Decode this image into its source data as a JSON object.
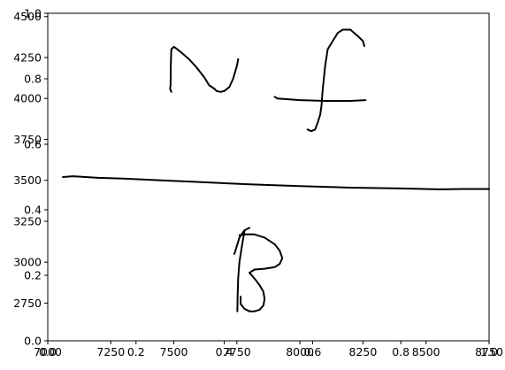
{
  "chart_data": {
    "type": "line",
    "title": "",
    "xlabel": "",
    "ylabel": "",
    "grid": false,
    "xlim": [
      7000,
      8750
    ],
    "ylim": [
      2520,
      4520
    ],
    "x_ticks": [
      7000,
      7250,
      7500,
      7750,
      8000,
      8250,
      8500,
      8750
    ],
    "y_ticks": [
      2750,
      3000,
      3250,
      3500,
      3750,
      4000,
      4250,
      4500
    ],
    "overlay_axes": {
      "xlim": [
        0,
        1
      ],
      "ylim": [
        0,
        1
      ],
      "x_ticks": [
        0.0,
        0.2,
        0.4,
        0.6,
        0.8,
        1.0
      ],
      "y_ticks": [
        0.0,
        0.2,
        0.4,
        0.6,
        0.8,
        1.0
      ]
    },
    "series": [
      {
        "x": [
          7490,
          7485,
          7487,
          7488,
          7490,
          7500,
          7510,
          7530,
          7560,
          7590,
          7620,
          7640,
          7660,
          7670,
          7685,
          7700,
          7720,
          7735,
          7750,
          7755
        ],
        "y": [
          4040,
          4060,
          4080,
          4200,
          4300,
          4315,
          4305,
          4280,
          4240,
          4190,
          4130,
          4080,
          4060,
          4045,
          4040,
          4045,
          4070,
          4120,
          4200,
          4240
        ]
      },
      {
        "x": [
          7900,
          7910,
          8000,
          8100,
          8200,
          8260
        ],
        "y": [
          4010,
          4000,
          3990,
          3985,
          3985,
          3990
        ]
      },
      {
        "x": [
          8030,
          8045,
          8060,
          8070,
          8080,
          8085,
          8090,
          8100,
          8110,
          8130,
          8150,
          8170,
          8200,
          8230,
          8250,
          8255
        ],
        "y": [
          3810,
          3800,
          3810,
          3850,
          3900,
          3950,
          4050,
          4200,
          4300,
          4350,
          4400,
          4420,
          4420,
          4380,
          4350,
          4320
        ]
      },
      {
        "x": [
          7060,
          7100,
          7200,
          7300,
          7450,
          7600,
          7800,
          8000,
          8200,
          8400,
          8550,
          8650,
          8750
        ],
        "y": [
          3520,
          3525,
          3515,
          3510,
          3500,
          3490,
          3475,
          3465,
          3455,
          3450,
          3445,
          3447,
          3447
        ]
      },
      {
        "x": [
          7740,
          7750,
          7760,
          7780,
          7800
        ],
        "y": [
          3050,
          3100,
          3150,
          3195,
          3210
        ]
      },
      {
        "x": [
          7760,
          7780,
          7820,
          7860,
          7900,
          7920,
          7930,
          7920,
          7900,
          7860,
          7820,
          7800
        ],
        "y": [
          3165,
          3170,
          3170,
          3150,
          3110,
          3070,
          3025,
          2990,
          2970,
          2960,
          2955,
          2935
        ]
      },
      {
        "x": [
          7800,
          7820,
          7840,
          7855,
          7860,
          7855,
          7840,
          7820,
          7800,
          7780,
          7765,
          7765
        ],
        "y": [
          2935,
          2900,
          2860,
          2820,
          2775,
          2735,
          2710,
          2700,
          2700,
          2715,
          2745,
          2790
        ]
      },
      {
        "x": [
          7780,
          7770,
          7760,
          7755,
          7753,
          7752
        ],
        "y": [
          3190,
          3100,
          3000,
          2900,
          2800,
          2700
        ]
      }
    ]
  }
}
